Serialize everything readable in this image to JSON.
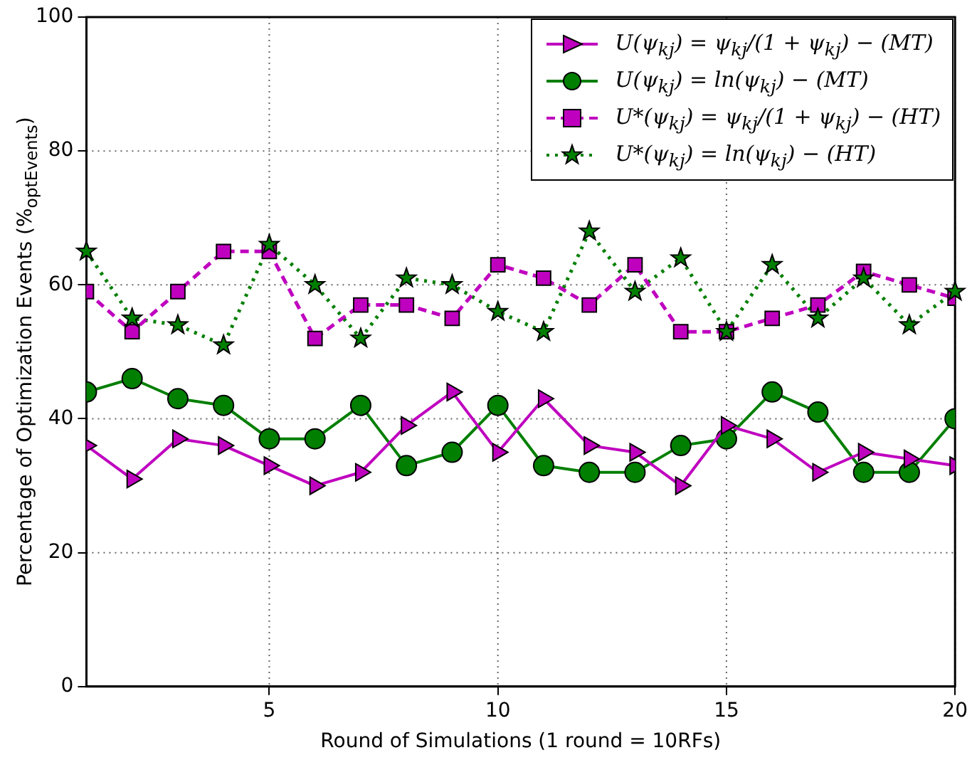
{
  "chart_data": {
    "type": "line",
    "xlabel": "Round of Simulations (1 round = 10RFs)",
    "ylabel": "Percentage of Optimization Events (%$_{optEvents}$)",
    "x": [
      1,
      2,
      3,
      4,
      5,
      6,
      7,
      8,
      9,
      10,
      11,
      12,
      13,
      14,
      15,
      16,
      17,
      18,
      19,
      20
    ],
    "series": [
      {
        "name": "U(ψ$_{kj}$) = ψ$_{kj}$/(1 + ψ$_{kj}$) − (MT)",
        "color": "#bf00bf",
        "marker": "triangle",
        "line_style": "solid",
        "values": [
          36,
          31,
          37,
          36,
          33,
          30,
          32,
          39,
          44,
          35,
          43,
          36,
          35,
          30,
          39,
          37,
          32,
          35,
          34,
          33
        ]
      },
      {
        "name": "U(ψ$_{kj}$) = ln(ψ$_{kj}$) − (MT)",
        "color": "#007f00",
        "marker": "circle",
        "line_style": "solid",
        "values": [
          44,
          46,
          43,
          42,
          37,
          37,
          42,
          33,
          35,
          42,
          33,
          32,
          32,
          36,
          37,
          44,
          41,
          32,
          32,
          40
        ]
      },
      {
        "name": "U*(ψ$_{kj}$) = ψ$_{kj}$/(1 + ψ$_{kj}$) − (HT)",
        "color": "#bf00bf",
        "marker": "square",
        "line_style": "dashed",
        "values": [
          59,
          53,
          59,
          65,
          65,
          52,
          57,
          57,
          55,
          63,
          61,
          57,
          63,
          53,
          53,
          55,
          57,
          62,
          60,
          58
        ]
      },
      {
        "name": "U*(ψ$_{kj}$) = ln(ψ$_{kj}$) − (HT)",
        "color": "#007f00",
        "marker": "star",
        "line_style": "dotted",
        "values": [
          65,
          55,
          54,
          51,
          66,
          60,
          52,
          61,
          60,
          56,
          53,
          68,
          59,
          64,
          53,
          63,
          55,
          61,
          54,
          59
        ]
      }
    ],
    "xlim": [
      1,
      20
    ],
    "xticks": [
      5,
      10,
      15,
      20
    ],
    "ylim": [
      0,
      100
    ],
    "yticks": [
      0,
      20,
      40,
      60,
      80,
      100
    ],
    "grid": true,
    "legend": "top right"
  }
}
